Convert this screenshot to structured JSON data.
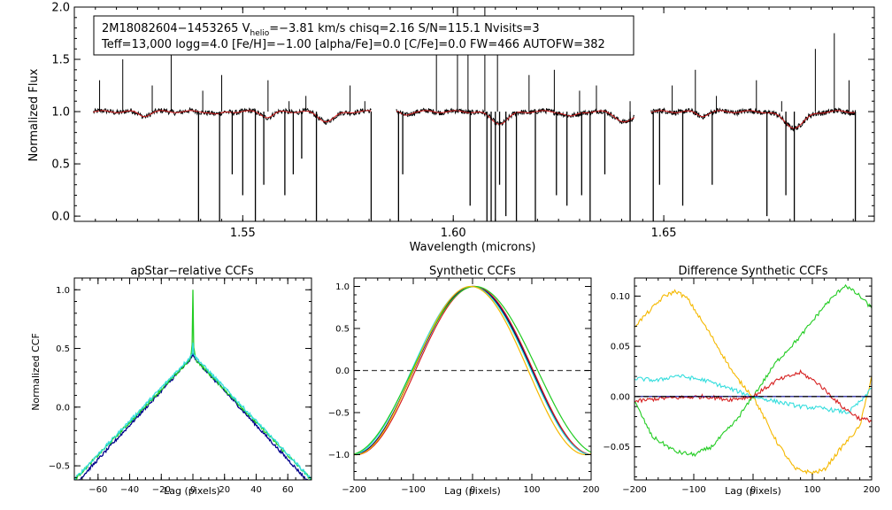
{
  "chart_data": [
    {
      "type": "line",
      "panel": "spectrum",
      "title": "",
      "xlabel": "Wavelength (microns)",
      "ylabel": "Normalized Flux",
      "xlim": [
        1.51,
        1.7
      ],
      "ylim": [
        -0.05,
        2.0
      ],
      "xticks": [
        1.55,
        1.6,
        1.65
      ],
      "xtick_labels": [
        "1.55",
        "1.60",
        "1.65"
      ],
      "yticks": [
        0.0,
        0.5,
        1.0,
        1.5,
        2.0
      ],
      "ytick_labels": [
        "0.0",
        "0.5",
        "1.0",
        "1.5",
        "2.0"
      ],
      "annotation": {
        "line1_prefix": "2M18082604−1453265  V",
        "line1_sub": "helio",
        "line1_suffix": "=−3.81 km/s  chisq=2.16  S/N=115.1  Nvisits=3",
        "line2": "Teff=13,000 logg=4.0 [Fe/H]=−1.00 [alpha/Fe]=0.0 [C/Fe]=0.0 FW=466 AUTOFW=382"
      },
      "chips": [
        {
          "start": 1.5145,
          "end": 1.5805
        },
        {
          "start": 1.5865,
          "end": 1.643
        },
        {
          "start": 1.647,
          "end": 1.6955
        }
      ],
      "absorption_features": [
        {
          "center": 1.5265,
          "depth": 0.04,
          "width": 0.0018
        },
        {
          "center": 1.544,
          "depth": 0.03,
          "width": 0.0016
        },
        {
          "center": 1.556,
          "depth": 0.05,
          "width": 0.002
        },
        {
          "center": 1.57,
          "depth": 0.09,
          "width": 0.0028
        },
        {
          "center": 1.5885,
          "depth": 0.03,
          "width": 0.0015
        },
        {
          "center": 1.611,
          "depth": 0.11,
          "width": 0.003
        },
        {
          "center": 1.628,
          "depth": 0.05,
          "width": 0.002
        },
        {
          "center": 1.641,
          "depth": 0.1,
          "width": 0.003
        },
        {
          "center": 1.659,
          "depth": 0.04,
          "width": 0.0018
        },
        {
          "center": 1.681,
          "depth": 0.15,
          "width": 0.0035
        }
      ],
      "spikes_up": [
        {
          "x": 1.516,
          "y": 1.3
        },
        {
          "x": 1.5215,
          "y": 1.5
        },
        {
          "x": 1.5285,
          "y": 1.25
        },
        {
          "x": 1.533,
          "y": 1.75
        },
        {
          "x": 1.5405,
          "y": 1.2
        },
        {
          "x": 1.545,
          "y": 1.35
        },
        {
          "x": 1.556,
          "y": 1.3
        },
        {
          "x": 1.561,
          "y": 1.1
        },
        {
          "x": 1.565,
          "y": 1.15
        },
        {
          "x": 1.5755,
          "y": 1.25
        },
        {
          "x": 1.579,
          "y": 1.1
        },
        {
          "x": 1.596,
          "y": 1.8
        },
        {
          "x": 1.601,
          "y": 2.0
        },
        {
          "x": 1.6035,
          "y": 1.9
        },
        {
          "x": 1.6075,
          "y": 2.0
        },
        {
          "x": 1.6105,
          "y": 1.8
        },
        {
          "x": 1.618,
          "y": 1.35
        },
        {
          "x": 1.624,
          "y": 1.4
        },
        {
          "x": 1.63,
          "y": 1.2
        },
        {
          "x": 1.634,
          "y": 1.25
        },
        {
          "x": 1.642,
          "y": 1.1
        },
        {
          "x": 1.652,
          "y": 1.25
        },
        {
          "x": 1.6575,
          "y": 1.4
        },
        {
          "x": 1.6625,
          "y": 1.15
        },
        {
          "x": 1.672,
          "y": 1.3
        },
        {
          "x": 1.678,
          "y": 1.1
        },
        {
          "x": 1.686,
          "y": 1.6
        },
        {
          "x": 1.6905,
          "y": 1.75
        },
        {
          "x": 1.694,
          "y": 1.3
        }
      ],
      "spikes_down": [
        {
          "x": 1.5395,
          "y": -0.05
        },
        {
          "x": 1.5445,
          "y": -0.05
        },
        {
          "x": 1.5475,
          "y": 0.4
        },
        {
          "x": 1.55,
          "y": 0.2
        },
        {
          "x": 1.553,
          "y": -0.05
        },
        {
          "x": 1.555,
          "y": 0.3
        },
        {
          "x": 1.56,
          "y": 0.2
        },
        {
          "x": 1.562,
          "y": 0.4
        },
        {
          "x": 1.564,
          "y": 0.55
        },
        {
          "x": 1.5675,
          "y": -0.05
        },
        {
          "x": 1.5805,
          "y": -0.05
        },
        {
          "x": 1.587,
          "y": -0.05
        },
        {
          "x": 1.588,
          "y": 0.4
        },
        {
          "x": 1.604,
          "y": 0.1
        },
        {
          "x": 1.608,
          "y": -0.05
        },
        {
          "x": 1.609,
          "y": -0.05
        },
        {
          "x": 1.61,
          "y": -0.05
        },
        {
          "x": 1.611,
          "y": 0.3
        },
        {
          "x": 1.6125,
          "y": 0.0
        },
        {
          "x": 1.615,
          "y": -0.05
        },
        {
          "x": 1.6195,
          "y": -0.05
        },
        {
          "x": 1.6245,
          "y": 0.2
        },
        {
          "x": 1.627,
          "y": 0.1
        },
        {
          "x": 1.6305,
          "y": 0.2
        },
        {
          "x": 1.6325,
          "y": -0.05
        },
        {
          "x": 1.636,
          "y": 0.4
        },
        {
          "x": 1.642,
          "y": -0.05
        },
        {
          "x": 1.6475,
          "y": -0.05
        },
        {
          "x": 1.649,
          "y": 0.3
        },
        {
          "x": 1.6545,
          "y": 0.1
        },
        {
          "x": 1.6615,
          "y": 0.3
        },
        {
          "x": 1.6745,
          "y": 0.0
        },
        {
          "x": 1.679,
          "y": 0.2
        },
        {
          "x": 1.681,
          "y": -0.05
        },
        {
          "x": 1.6955,
          "y": -0.05
        }
      ],
      "series": [
        {
          "name": "observed",
          "color": "#000000"
        },
        {
          "name": "model",
          "color": "#d62020"
        }
      ]
    },
    {
      "type": "line",
      "panel": "apstar-ccf",
      "title": "apStar−relative CCFs",
      "xlabel": "Lag (pixels)",
      "ylabel": "Normalized CCF",
      "xlim": [
        -75,
        75
      ],
      "ylim": [
        -0.62,
        1.1
      ],
      "xticks": [
        -60,
        -40,
        -20,
        0,
        20,
        40,
        60
      ],
      "xtick_labels": [
        "−60",
        "−40",
        "−20",
        "0",
        "20",
        "40",
        "60"
      ],
      "yticks": [
        -0.5,
        0.0,
        0.5,
        1.0
      ],
      "ytick_labels": [
        "−0.5",
        "0.0",
        "0.5",
        "1.0"
      ],
      "series": [
        {
          "name": "visit 1",
          "color": "#00008b",
          "peak": 0.43,
          "slope": 0.0146,
          "spike": 0.03
        },
        {
          "name": "visit 2",
          "color": "#22cc22",
          "peak": 0.43,
          "slope": 0.014,
          "spike": 0.57
        },
        {
          "name": "visit 3",
          "color": "#33dddd",
          "peak": 0.45,
          "slope": 0.0142,
          "spike": 0.1
        }
      ]
    },
    {
      "type": "line",
      "panel": "synthetic-ccf",
      "title": "Synthetic CCFs",
      "xlabel": "Lag (pixels)",
      "ylabel": "",
      "xlim": [
        -200,
        200
      ],
      "ylim": [
        -1.3,
        1.1
      ],
      "xticks": [
        -200,
        -100,
        0,
        100,
        200
      ],
      "xtick_labels": [
        "−200",
        "−100",
        "0",
        "100",
        "200"
      ],
      "yticks": [
        -1.0,
        -0.5,
        0.0,
        0.5,
        1.0
      ],
      "ytick_labels": [
        "−1.0",
        "−0.5",
        "0.0",
        "0.5",
        "1.0"
      ],
      "reference_line": {
        "y": 0.0,
        "style": "dashed"
      },
      "series": [
        {
          "name": "black",
          "color": "#000000",
          "shift": 0,
          "width": 200
        },
        {
          "name": "navy",
          "color": "#00008b",
          "shift": 1,
          "width": 201
        },
        {
          "name": "red",
          "color": "#d62020",
          "shift": 3,
          "width": 199
        },
        {
          "name": "cyan",
          "color": "#33dddd",
          "shift": -2,
          "width": 202
        },
        {
          "name": "green",
          "color": "#22cc22",
          "shift": 4,
          "width": 212
        },
        {
          "name": "orange",
          "color": "#f5b800",
          "shift": -3,
          "width": 194
        }
      ]
    },
    {
      "type": "line",
      "panel": "difference-ccf",
      "title": "Difference Synthetic CCFs",
      "xlabel": "Lag (pixels)",
      "ylabel": "",
      "xlim": [
        -200,
        200
      ],
      "ylim": [
        -0.083,
        0.118
      ],
      "xticks": [
        -200,
        -100,
        0,
        100,
        200
      ],
      "xtick_labels": [
        "−200",
        "−100",
        "0",
        "100",
        "200"
      ],
      "yticks": [
        -0.05,
        0.0,
        0.05,
        0.1
      ],
      "ytick_labels": [
        "−0.05",
        "0.00",
        "0.05",
        "0.10"
      ],
      "series": [
        {
          "name": "orange",
          "color": "#f5b800",
          "points": [
            [
              -200,
              0.07
            ],
            [
              -180,
              0.082
            ],
            [
              -150,
              0.1
            ],
            [
              -130,
              0.105
            ],
            [
              -110,
              0.097
            ],
            [
              -70,
              0.06
            ],
            [
              -30,
              0.02
            ],
            [
              0,
              0.0
            ],
            [
              40,
              -0.045
            ],
            [
              70,
              -0.072
            ],
            [
              100,
              -0.076
            ],
            [
              120,
              -0.073
            ],
            [
              150,
              -0.05
            ],
            [
              180,
              -0.03
            ],
            [
              200,
              0.02
            ]
          ]
        },
        {
          "name": "green",
          "color": "#22cc22",
          "points": [
            [
              -200,
              -0.005
            ],
            [
              -170,
              -0.04
            ],
            [
              -130,
              -0.055
            ],
            [
              -100,
              -0.058
            ],
            [
              -70,
              -0.05
            ],
            [
              -30,
              -0.025
            ],
            [
              0,
              0.0
            ],
            [
              40,
              0.035
            ],
            [
              80,
              0.06
            ],
            [
              120,
              0.09
            ],
            [
              155,
              0.111
            ],
            [
              180,
              0.1
            ],
            [
              200,
              0.088
            ]
          ]
        },
        {
          "name": "cyan",
          "color": "#33dddd",
          "points": [
            [
              -200,
              0.018
            ],
            [
              -160,
              0.016
            ],
            [
              -130,
              0.021
            ],
            [
              -80,
              0.016
            ],
            [
              -40,
              0.008
            ],
            [
              0,
              0.0
            ],
            [
              40,
              -0.005
            ],
            [
              80,
              -0.01
            ],
            [
              120,
              -0.012
            ],
            [
              160,
              -0.016
            ],
            [
              190,
              0.0
            ],
            [
              200,
              0.01
            ]
          ]
        },
        {
          "name": "red",
          "color": "#d62020",
          "points": [
            [
              -200,
              -0.005
            ],
            [
              -160,
              -0.002
            ],
            [
              -120,
              -0.001
            ],
            [
              -80,
              0.0
            ],
            [
              -40,
              -0.003
            ],
            [
              0,
              0.0
            ],
            [
              40,
              0.016
            ],
            [
              80,
              0.024
            ],
            [
              110,
              0.013
            ],
            [
              150,
              -0.01
            ],
            [
              180,
              -0.022
            ],
            [
              200,
              -0.024
            ]
          ]
        },
        {
          "name": "navy",
          "color": "#00008b",
          "points": [
            [
              -200,
              0.0
            ],
            [
              0,
              0.0
            ],
            [
              200,
              0.0
            ]
          ]
        },
        {
          "name": "black-dashed",
          "color": "#000000",
          "dashed": true,
          "points": [
            [
              -200,
              0.0
            ],
            [
              200,
              0.0
            ]
          ]
        }
      ]
    }
  ]
}
